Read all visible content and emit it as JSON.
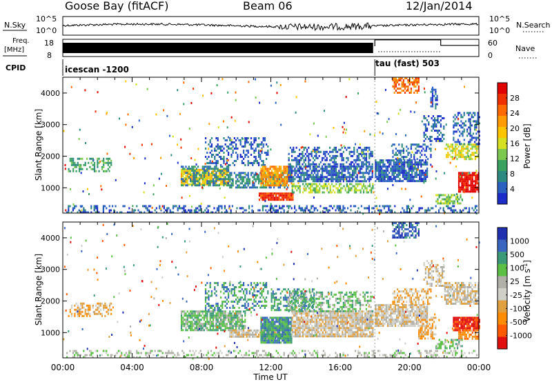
{
  "header": {
    "station": "Goose Bay (fitACF)",
    "beam": "Beam 06",
    "date": "12/Jan/2014"
  },
  "meta_panels": {
    "nsky_label": "N.Sky",
    "nsky_ticks": [
      "10^5",
      "10^0"
    ],
    "nsearch_label": "N.Search",
    "nsearch_ticks": [
      "10^5",
      "10^0"
    ],
    "freq_label_1": "Freq.",
    "freq_label_2": "[MHz]",
    "freq_ticks": [
      "18",
      "8"
    ],
    "nave_label": "Nave",
    "nave_ticks": [
      "60",
      "0"
    ],
    "cpid_label": "CPID",
    "cpid_1": "icescan -1200",
    "cpid_2": "tau (fast) 503"
  },
  "colorbars": {
    "power": {
      "label": "Power [dB]",
      "ticks": [
        "28",
        "24",
        "20",
        "16",
        "12",
        "8",
        "4"
      ],
      "colors": [
        "#e00000",
        "#f03000",
        "#ff6a00",
        "#ff9a00",
        "#ffc400",
        "#d4e020",
        "#7dc850",
        "#3aa060",
        "#2e8a80",
        "#2a60c0",
        "#1c2cc8"
      ]
    },
    "velocity": {
      "label_text": "Velocity [m s",
      "label_exp": "-1",
      "label_close": "]",
      "ticks": [
        "1000",
        "500",
        "100",
        "25",
        "-25",
        "-100",
        "-500",
        "-1000"
      ],
      "colors": [
        "#2030b0",
        "#3a66c0",
        "#3c9a78",
        "#5cc046",
        "#b0b0a8",
        "#d0d0c8",
        "#e0a040",
        "#ff8c00",
        "#ff5a00",
        "#e01010"
      ]
    }
  },
  "chart_data": [
    {
      "type": "heatmap",
      "title": "Power",
      "ylabel": "Slant Range [km]",
      "ylim": [
        200,
        4500
      ],
      "yticks": [
        1000,
        2000,
        3000,
        4000
      ],
      "xlim": [
        "00:00",
        "24:00"
      ],
      "xticks": [
        "00:00",
        "04:00",
        "08:00",
        "12:00",
        "16:00",
        "20:00",
        "00:00"
      ],
      "xlabel": "Time UT",
      "patches": [
        {
          "t0": 0.3,
          "t1": 2.8,
          "r0": 1500,
          "r1": 1950,
          "level": 7,
          "d": 0.45
        },
        {
          "t0": 0.2,
          "t1": 24.0,
          "r0": 200,
          "r1": 450,
          "level": 9,
          "d": 0.35
        },
        {
          "t0": 6.8,
          "t1": 9.6,
          "r0": 1100,
          "r1": 1600,
          "level": 4,
          "d": 0.85
        },
        {
          "t0": 6.8,
          "t1": 9.6,
          "r0": 1050,
          "r1": 1700,
          "level": 8,
          "d": 0.5
        },
        {
          "t0": 8.2,
          "t1": 11.8,
          "r0": 1700,
          "r1": 2600,
          "level": 9,
          "d": 0.35
        },
        {
          "t0": 9.6,
          "t1": 13.0,
          "r0": 1000,
          "r1": 1500,
          "level": 8,
          "d": 0.6
        },
        {
          "t0": 11.4,
          "t1": 13.2,
          "r0": 1100,
          "r1": 1700,
          "level": 3,
          "d": 0.85
        },
        {
          "t0": 11.3,
          "t1": 13.3,
          "r0": 650,
          "r1": 850,
          "level": 1,
          "d": 0.95
        },
        {
          "t0": 13.0,
          "t1": 17.9,
          "r0": 1200,
          "r1": 1700,
          "level": 9,
          "d": 0.7
        },
        {
          "t0": 13.0,
          "t1": 17.9,
          "r0": 1700,
          "r1": 2300,
          "level": 9,
          "d": 0.4
        },
        {
          "t0": 13.2,
          "t1": 17.9,
          "r0": 850,
          "r1": 1150,
          "level": 6,
          "d": 0.55
        },
        {
          "t0": 18.0,
          "t1": 21.0,
          "r0": 1200,
          "r1": 1900,
          "level": 9,
          "d": 0.8
        },
        {
          "t0": 19.0,
          "t1": 21.2,
          "r0": 1900,
          "r1": 2400,
          "level": 9,
          "d": 0.45
        },
        {
          "t0": 19.0,
          "t1": 20.5,
          "r0": 4000,
          "r1": 4500,
          "level": 2,
          "d": 0.6
        },
        {
          "t0": 20.8,
          "t1": 22.0,
          "r0": 2500,
          "r1": 3300,
          "level": 9,
          "d": 0.35
        },
        {
          "t0": 22.0,
          "t1": 24.0,
          "r0": 1900,
          "r1": 2400,
          "level": 5,
          "d": 0.6
        },
        {
          "t0": 22.5,
          "t1": 24.0,
          "r0": 2400,
          "r1": 3400,
          "level": 9,
          "d": 0.45
        },
        {
          "t0": 22.8,
          "t1": 24.0,
          "r0": 900,
          "r1": 1500,
          "level": 0,
          "d": 0.9
        },
        {
          "t0": 21.5,
          "t1": 23.0,
          "r0": 500,
          "r1": 800,
          "level": 6,
          "d": 0.6
        },
        {
          "t0": 21.2,
          "t1": 21.6,
          "r0": 3500,
          "r1": 4200,
          "level": 9,
          "d": 0.5
        }
      ]
    },
    {
      "type": "heatmap",
      "title": "Velocity",
      "ylabel": "Slant Range [km]",
      "ylim": [
        200,
        4500
      ],
      "yticks": [
        1000,
        2000,
        3000,
        4000
      ],
      "xlim": [
        "00:00",
        "24:00"
      ],
      "xticks": [
        "00:00",
        "04:00",
        "08:00",
        "12:00",
        "16:00",
        "20:00",
        "00:00"
      ],
      "xlabel": "Time UT",
      "patches": [
        {
          "t0": 0.3,
          "t1": 2.8,
          "r0": 1500,
          "r1": 1950,
          "level": 3,
          "d": 0.45
        },
        {
          "t0": 0.2,
          "t1": 24.0,
          "r0": 200,
          "r1": 450,
          "level": 5,
          "d": 0.3
        },
        {
          "t0": 6.8,
          "t1": 10.5,
          "r0": 1050,
          "r1": 1700,
          "level": 6,
          "d": 0.8
        },
        {
          "t0": 8.2,
          "t1": 11.8,
          "r0": 1700,
          "r1": 2600,
          "level": 7,
          "d": 0.35
        },
        {
          "t0": 9.6,
          "t1": 13.0,
          "r0": 900,
          "r1": 1100,
          "level": 4,
          "d": 0.9
        },
        {
          "t0": 11.4,
          "t1": 13.2,
          "r0": 650,
          "r1": 1500,
          "level": 7,
          "d": 0.9
        },
        {
          "t0": 12.0,
          "t1": 14.5,
          "r0": 1700,
          "r1": 2400,
          "level": 7,
          "d": 0.5
        },
        {
          "t0": 13.2,
          "t1": 17.9,
          "r0": 850,
          "r1": 1700,
          "level": 4,
          "d": 0.85
        },
        {
          "t0": 13.0,
          "t1": 17.9,
          "r0": 1700,
          "r1": 2300,
          "level": 6,
          "d": 0.4
        },
        {
          "t0": 18.0,
          "t1": 21.0,
          "r0": 1200,
          "r1": 1900,
          "level": 4,
          "d": 0.8
        },
        {
          "t0": 19.0,
          "t1": 21.2,
          "r0": 1900,
          "r1": 2400,
          "level": 3,
          "d": 0.5
        },
        {
          "t0": 20.5,
          "t1": 21.5,
          "r0": 800,
          "r1": 1500,
          "level": 3,
          "d": 0.6
        },
        {
          "t0": 19.0,
          "t1": 20.5,
          "r0": 4000,
          "r1": 4500,
          "level": 8,
          "d": 0.6
        },
        {
          "t0": 20.8,
          "t1": 22.0,
          "r0": 2500,
          "r1": 3300,
          "level": 4,
          "d": 0.4
        },
        {
          "t0": 22.0,
          "t1": 24.0,
          "r0": 1900,
          "r1": 2600,
          "level": 4,
          "d": 0.7
        },
        {
          "t0": 22.5,
          "t1": 24.0,
          "r0": 1100,
          "r1": 1500,
          "level": 0,
          "d": 0.85
        },
        {
          "t0": 22.8,
          "t1": 24.0,
          "r0": 800,
          "r1": 1100,
          "level": 2,
          "d": 0.7
        },
        {
          "t0": 21.5,
          "t1": 23.0,
          "r0": 500,
          "r1": 800,
          "level": 6,
          "d": 0.6
        }
      ]
    }
  ],
  "nave_series": {
    "segments": [
      {
        "t0": 0.0,
        "t1": 18.0,
        "value": 35
      },
      {
        "t0": 18.0,
        "t1": 21.8,
        "value": 58
      },
      {
        "t0": 21.8,
        "t1": 24.0,
        "value": 38
      }
    ],
    "dotted_to": 21.8
  },
  "freq_fill_until": 17.9,
  "cpid_change_at": 18.0
}
